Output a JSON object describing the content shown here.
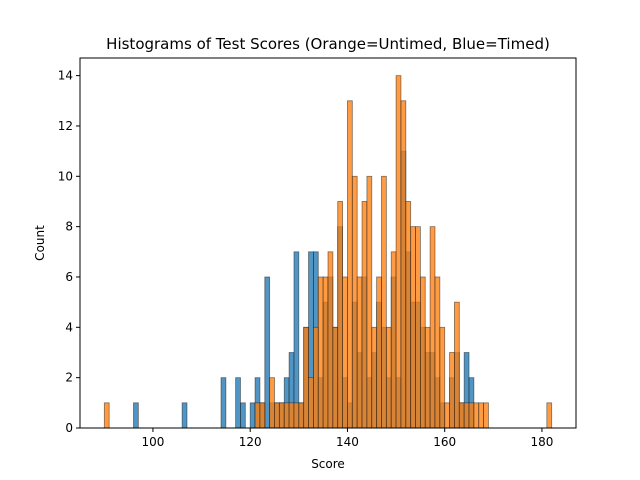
{
  "chart_data": {
    "type": "bar",
    "title": "Histograms of Test Scores (Orange=Untimed, Blue=Timed)",
    "xlabel": "Score",
    "ylabel": "Count",
    "xlim": [
      85,
      187
    ],
    "ylim": [
      0,
      14.7
    ],
    "xticks": [
      100,
      120,
      140,
      160,
      180
    ],
    "yticks": [
      0,
      2,
      4,
      6,
      8,
      10,
      12,
      14
    ],
    "grid": false,
    "legend": "none",
    "series": [
      {
        "color": "#1f77b4",
        "bin_width": 1,
        "bins": [
          [
            96,
            1
          ],
          [
            106,
            1
          ],
          [
            114,
            2
          ],
          [
            117,
            2
          ],
          [
            118,
            1
          ],
          [
            120,
            1
          ],
          [
            121,
            2
          ],
          [
            122,
            1
          ],
          [
            123,
            6
          ],
          [
            124,
            1
          ],
          [
            125,
            1
          ],
          [
            126,
            1
          ],
          [
            127,
            2
          ],
          [
            128,
            3
          ],
          [
            129,
            7
          ],
          [
            130,
            1
          ],
          [
            131,
            4
          ],
          [
            132,
            7
          ],
          [
            133,
            7
          ],
          [
            134,
            2
          ],
          [
            135,
            5
          ],
          [
            136,
            6
          ],
          [
            137,
            4
          ],
          [
            138,
            8
          ],
          [
            139,
            2
          ],
          [
            140,
            1
          ],
          [
            141,
            5
          ],
          [
            142,
            3
          ],
          [
            143,
            6
          ],
          [
            144,
            2
          ],
          [
            145,
            3
          ],
          [
            146,
            5
          ],
          [
            147,
            4
          ],
          [
            148,
            2
          ],
          [
            149,
            6
          ],
          [
            150,
            2
          ],
          [
            151,
            11
          ],
          [
            152,
            7
          ],
          [
            153,
            5
          ],
          [
            154,
            5
          ],
          [
            155,
            4
          ],
          [
            156,
            3
          ],
          [
            157,
            3
          ],
          [
            158,
            2
          ],
          [
            159,
            1
          ],
          [
            161,
            2
          ],
          [
            162,
            3
          ],
          [
            163,
            1
          ],
          [
            164,
            3
          ],
          [
            165,
            2
          ]
        ]
      },
      {
        "color": "#ff7f0e",
        "bin_width": 1,
        "bins": [
          [
            90,
            1
          ],
          [
            121,
            1
          ],
          [
            122,
            1
          ],
          [
            124,
            2
          ],
          [
            125,
            1
          ],
          [
            126,
            1
          ],
          [
            127,
            1
          ],
          [
            128,
            1
          ],
          [
            129,
            1
          ],
          [
            130,
            1
          ],
          [
            131,
            4
          ],
          [
            132,
            2
          ],
          [
            133,
            4
          ],
          [
            134,
            6
          ],
          [
            135,
            6
          ],
          [
            136,
            7
          ],
          [
            137,
            4
          ],
          [
            138,
            9
          ],
          [
            139,
            6
          ],
          [
            140,
            13
          ],
          [
            141,
            10
          ],
          [
            142,
            6
          ],
          [
            143,
            9
          ],
          [
            144,
            10
          ],
          [
            145,
            4
          ],
          [
            146,
            6
          ],
          [
            147,
            10
          ],
          [
            148,
            4
          ],
          [
            149,
            7
          ],
          [
            150,
            14
          ],
          [
            151,
            13
          ],
          [
            152,
            9
          ],
          [
            153,
            8
          ],
          [
            154,
            8
          ],
          [
            155,
            6
          ],
          [
            156,
            4
          ],
          [
            157,
            8
          ],
          [
            158,
            6
          ],
          [
            159,
            4
          ],
          [
            160,
            1
          ],
          [
            161,
            3
          ],
          [
            162,
            5
          ],
          [
            163,
            1
          ],
          [
            164,
            1
          ],
          [
            165,
            1
          ],
          [
            166,
            1
          ],
          [
            167,
            1
          ],
          [
            168,
            1
          ],
          [
            181,
            1
          ]
        ]
      }
    ]
  }
}
